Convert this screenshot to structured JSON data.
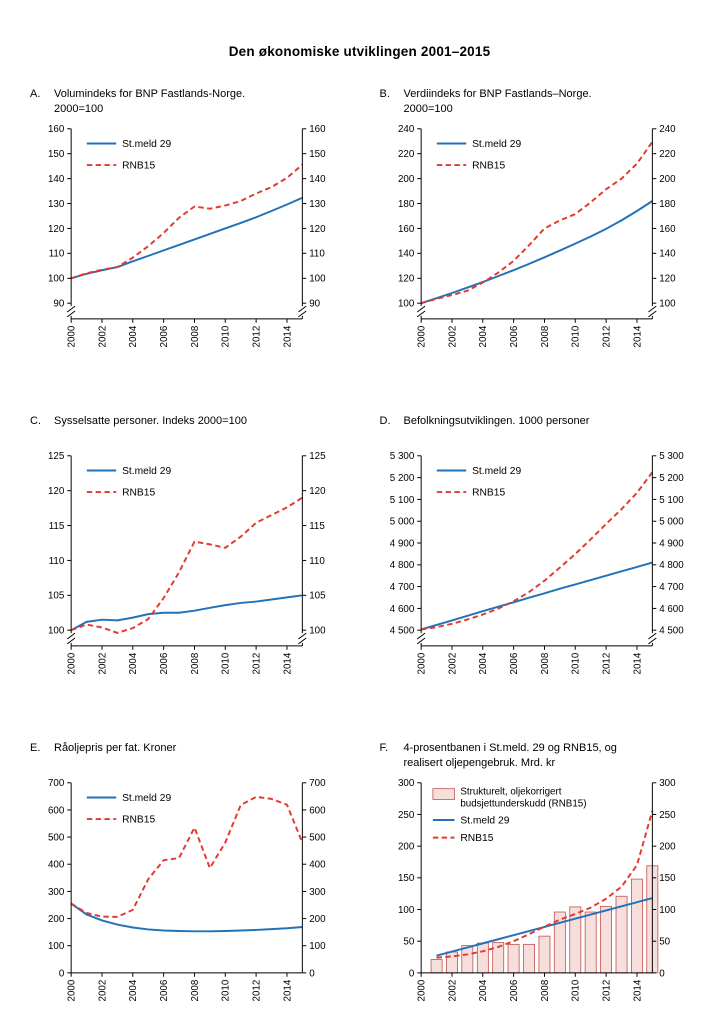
{
  "page": {
    "title": "Den økonomiske utviklingen 2001–2015"
  },
  "colors": {
    "blue": "#2172b8",
    "red": "#e03b2f",
    "bar_fill": "#f6dedd",
    "bar_stroke": "#c0504d",
    "axis": "#000000"
  },
  "chart_data": [
    {
      "id": "A",
      "label": "A.",
      "type": "line",
      "title": "Volumindeks for BNP Fastlands-Norge.\n2000=100",
      "x_start": 2000,
      "x_end": 2015,
      "x_ticks": [
        2000,
        2002,
        2004,
        2006,
        2008,
        2010,
        2012,
        2014
      ],
      "ylim": [
        90,
        160
      ],
      "ytick_step": 10,
      "axis_break": true,
      "series": [
        {
          "name": "St.meld 29",
          "color": "blue",
          "dash": false,
          "x0": 2000,
          "values": [
            100,
            101.8,
            103.2,
            104.5,
            106.8,
            109,
            111.2,
            113.4,
            115.6,
            117.8,
            120,
            122.2,
            124.5,
            127,
            129.6,
            132.3
          ]
        },
        {
          "name": "RNB15",
          "color": "red",
          "dash": true,
          "x0": 2000,
          "values": [
            100,
            102,
            103.4,
            104.5,
            108.3,
            112.9,
            118.2,
            124.3,
            128.8,
            127.9,
            129.2,
            131,
            134,
            136.6,
            140.3,
            145.6
          ]
        }
      ]
    },
    {
      "id": "B",
      "label": "B.",
      "type": "line",
      "title": "Verdiindeks for BNP Fastlands–Norge.\n2000=100",
      "x_start": 2000,
      "x_end": 2015,
      "x_ticks": [
        2000,
        2002,
        2004,
        2006,
        2008,
        2010,
        2012,
        2014
      ],
      "ylim": [
        100,
        240
      ],
      "ytick_step": 20,
      "axis_break": true,
      "series": [
        {
          "name": "St.meld 29",
          "color": "blue",
          "dash": false,
          "x0": 2000,
          "values": [
            100,
            104,
            108.2,
            112.5,
            117,
            121.7,
            126.5,
            131.5,
            136.8,
            142.2,
            147.8,
            153.6,
            159.7,
            166.5,
            174,
            182
          ]
        },
        {
          "name": "RNB15",
          "color": "red",
          "dash": true,
          "x0": 2000,
          "values": [
            100,
            103.5,
            106.5,
            110,
            116.5,
            124.5,
            134,
            146.5,
            160,
            166.5,
            171.5,
            181,
            191.5,
            200,
            212,
            229.5
          ]
        }
      ]
    },
    {
      "id": "C",
      "label": "C.",
      "type": "line",
      "title": "Sysselsatte personer. Indeks 2000=100",
      "x_start": 2000,
      "x_end": 2015,
      "x_ticks": [
        2000,
        2002,
        2004,
        2006,
        2008,
        2010,
        2012,
        2014
      ],
      "ylim": [
        100,
        125
      ],
      "ytick_step": 5,
      "axis_break": true,
      "series": [
        {
          "name": "St.meld 29",
          "color": "blue",
          "dash": false,
          "x0": 2000,
          "values": [
            100,
            101.2,
            101.5,
            101.4,
            101.8,
            102.3,
            102.5,
            102.5,
            102.8,
            103.2,
            103.6,
            103.9,
            104.1,
            104.4,
            104.7,
            105
          ]
        },
        {
          "name": "RNB15",
          "color": "red",
          "dash": true,
          "x0": 2000,
          "values": [
            100,
            100.8,
            100.4,
            99.6,
            100.3,
            101.6,
            104.6,
            108.3,
            112.7,
            112.3,
            111.8,
            113.4,
            115.4,
            116.5,
            117.6,
            119
          ]
        }
      ]
    },
    {
      "id": "D",
      "label": "D.",
      "type": "line",
      "title": "Befolkningsutviklingen. 1000 personer",
      "x_start": 2000,
      "x_end": 2015,
      "x_ticks": [
        2000,
        2002,
        2004,
        2006,
        2008,
        2010,
        2012,
        2014
      ],
      "ylim": [
        4500,
        5300
      ],
      "ytick_step": 100,
      "axis_break": true,
      "series": [
        {
          "name": "St.meld 29",
          "color": "blue",
          "dash": false,
          "x0": 2000,
          "values": [
            4503,
            4524,
            4545,
            4566,
            4587,
            4608,
            4628,
            4649,
            4669,
            4690,
            4710,
            4730,
            4750,
            4770,
            4790,
            4810
          ]
        },
        {
          "name": "RNB15",
          "color": "red",
          "dash": true,
          "x0": 2000,
          "values": [
            4503,
            4514,
            4529,
            4549,
            4572,
            4599,
            4633,
            4675,
            4727,
            4787,
            4849,
            4917,
            4987,
            5055,
            5130,
            5225
          ]
        }
      ]
    },
    {
      "id": "E",
      "label": "E.",
      "type": "line",
      "title": "Råoljepris per fat. Kroner",
      "x_start": 2000,
      "x_end": 2015,
      "x_ticks": [
        2000,
        2002,
        2004,
        2006,
        2008,
        2010,
        2012,
        2014
      ],
      "ylim": [
        0,
        700
      ],
      "ytick_step": 100,
      "axis_break": false,
      "series": [
        {
          "name": "St.meld 29",
          "color": "blue",
          "dash": false,
          "x0": 2000,
          "values": [
            255,
            215,
            193,
            178,
            167,
            160,
            156,
            154,
            153,
            153,
            154,
            156,
            158,
            161,
            164,
            169
          ]
        },
        {
          "name": "RNB15",
          "color": "red",
          "dash": true,
          "x0": 2000,
          "values": [
            255,
            221,
            207,
            206,
            232,
            345,
            415,
            423,
            535,
            386,
            480,
            618,
            648,
            641,
            619,
            480
          ]
        }
      ]
    },
    {
      "id": "F",
      "label": "F.",
      "type": "bar-line",
      "title": "4-prosentbanen i St.meld. 29 og RNB15, og\nrealisert oljepengebruk. Mrd. kr",
      "x_start": 2000,
      "x_end": 2015,
      "x_ticks": [
        2000,
        2002,
        2004,
        2006,
        2008,
        2010,
        2012,
        2014
      ],
      "ylim": [
        0,
        300
      ],
      "ytick_step": 50,
      "axis_break": false,
      "bars": {
        "name": "Strukturelt, oljekorrigert\nbudsjettunderskudd (RNB15)",
        "x0": 2001,
        "values": [
          21,
          33,
          43,
          47,
          48,
          45,
          45,
          58,
          96,
          104,
          96,
          105,
          121,
          148,
          169
        ]
      },
      "series": [
        {
          "name": "St.meld 29",
          "color": "blue",
          "dash": false,
          "x0": 2001,
          "values": [
            27,
            33.5,
            40,
            46.5,
            53,
            59.5,
            66,
            72.5,
            79,
            85.5,
            92,
            98.5,
            105,
            111.5,
            118
          ]
        },
        {
          "name": "RNB15",
          "color": "red",
          "dash": true,
          "x0": 2001,
          "values": [
            24,
            26,
            29,
            34,
            41,
            50,
            61,
            73,
            84,
            93,
            103,
            117,
            136,
            170,
            256
          ]
        }
      ]
    }
  ]
}
